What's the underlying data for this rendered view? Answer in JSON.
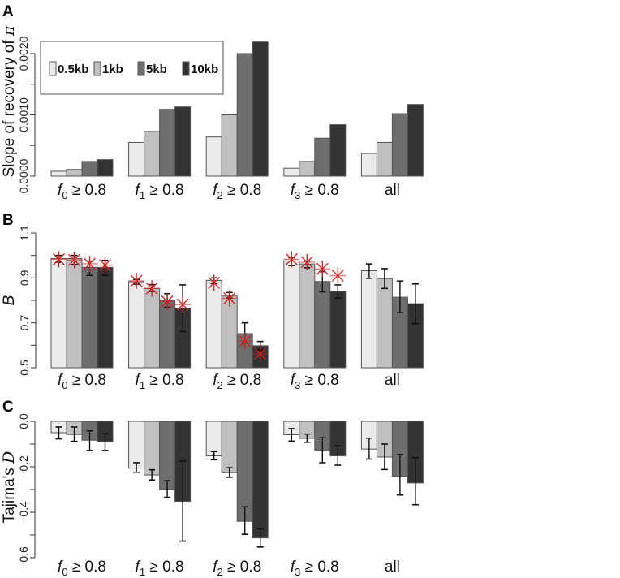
{
  "chart_data": [
    {
      "panel": "A",
      "type": "bar",
      "ylabel": "Slope of recovery of",
      "ylabel_symbol": "π",
      "ylim": [
        0,
        0.0022
      ],
      "yticks": [
        "0.0000",
        "0.0010",
        "0.0020"
      ],
      "ytick_values": [
        0,
        0.001,
        0.002
      ],
      "minor_ticks": [
        0.0005,
        0.0015
      ],
      "legend": {
        "placement": "top-left",
        "entries": [
          "0.5kb",
          "1kb",
          "5kb",
          "10kb"
        ]
      },
      "categories": [
        {
          "var": "f",
          "sub": "0",
          "text": " ≥ 0.8"
        },
        {
          "var": "f",
          "sub": "1",
          "text": " ≥ 0.8"
        },
        {
          "var": "f",
          "sub": "2",
          "text": " ≥ 0.8"
        },
        {
          "var": "f",
          "sub": "3",
          "text": " ≥ 0.8"
        },
        {
          "var": "",
          "sub": "",
          "text": "all"
        }
      ],
      "series": [
        {
          "name": "0.5kb",
          "values": [
            8e-05,
            0.00055,
            0.00064,
            0.00013,
            0.00037
          ]
        },
        {
          "name": "1kb",
          "values": [
            0.00011,
            0.00073,
            0.001,
            0.00024,
            0.00055
          ]
        },
        {
          "name": "5kb",
          "values": [
            0.00024,
            0.00109,
            0.002,
            0.00062,
            0.00102
          ]
        },
        {
          "name": "10kb",
          "values": [
            0.00027,
            0.00113,
            0.00219,
            0.00084,
            0.00117
          ]
        }
      ]
    },
    {
      "panel": "B",
      "type": "bar",
      "ylabel": "B",
      "ylim": [
        0.5,
        1.1
      ],
      "yticks": [
        "0.5",
        "0.7",
        "0.9",
        "1.1"
      ],
      "ytick_values": [
        0.5,
        0.7,
        0.9,
        1.1
      ],
      "minor_ticks": [
        0.6,
        0.8,
        1.0
      ],
      "categories": [
        {
          "var": "f",
          "sub": "0",
          "text": " ≥ 0.8"
        },
        {
          "var": "f",
          "sub": "1",
          "text": " ≥ 0.8"
        },
        {
          "var": "f",
          "sub": "2",
          "text": " ≥ 0.8"
        },
        {
          "var": "f",
          "sub": "3",
          "text": " ≥ 0.8"
        },
        {
          "var": "",
          "sub": "",
          "text": "all"
        }
      ],
      "series": [
        {
          "name": "0.5kb",
          "values": [
            0.986,
            0.883,
            0.889,
            0.976,
            0.932
          ],
          "err": [
            [
              0.97,
              1.0
            ],
            [
              0.872,
              0.893
            ],
            [
              0.875,
              0.9
            ],
            [
              0.955,
              0.99
            ],
            [
              0.898,
              0.962
            ]
          ],
          "stars": [
            0.983,
            0.887,
            0.878,
            0.983,
            null
          ]
        },
        {
          "name": "1kb",
          "values": [
            0.986,
            0.853,
            0.819,
            0.962,
            0.897
          ],
          "err": [
            [
              0.96,
              1.0
            ],
            [
              0.84,
              0.87
            ],
            [
              0.81,
              0.835
            ],
            [
              0.945,
              0.975
            ],
            [
              0.853,
              0.941
            ]
          ],
          "stars": [
            0.98,
            0.853,
            0.809,
            0.97,
            null
          ]
        },
        {
          "name": "5kb",
          "values": [
            0.947,
            0.8,
            0.652,
            0.884,
            0.814
          ],
          "err": [
            [
              0.911,
              0.975
            ],
            [
              0.769,
              0.83
            ],
            [
              0.61,
              0.7
            ],
            [
              0.838,
              0.928
            ],
            [
              0.745,
              0.886
            ]
          ],
          "stars": [
            0.963,
            0.795,
            0.618,
            0.94,
            null
          ]
        },
        {
          "name": "10kb",
          "values": [
            0.947,
            0.766,
            0.598,
            0.84,
            0.785
          ],
          "err": [
            [
              0.911,
              0.978
            ],
            [
              0.661,
              0.869
            ],
            [
              0.58,
              0.617
            ],
            [
              0.81,
              0.869
            ],
            [
              0.696,
              0.873
            ]
          ],
          "stars": [
            0.957,
            0.781,
            0.562,
            0.91,
            null
          ]
        }
      ]
    },
    {
      "panel": "C",
      "type": "bar",
      "ylabel": "Tajima's",
      "ylabel_symbol": "D",
      "ylim": [
        -0.6,
        0.0
      ],
      "yticks": [
        "0.0",
        "−0.2",
        "−0.4",
        "−0.6"
      ],
      "ytick_values": [
        0,
        -0.2,
        -0.4,
        -0.6
      ],
      "minor_ticks": [
        -0.1,
        -0.3,
        -0.5
      ],
      "categories": [
        {
          "var": "f",
          "sub": "0",
          "text": " ≥ 0.8"
        },
        {
          "var": "f",
          "sub": "1",
          "text": " ≥ 0.8"
        },
        {
          "var": "f",
          "sub": "2",
          "text": " ≥ 0.8"
        },
        {
          "var": "f",
          "sub": "3",
          "text": " ≥ 0.8"
        },
        {
          "var": "",
          "sub": "",
          "text": "all"
        }
      ],
      "series": [
        {
          "name": "0.5kb",
          "values": [
            -0.05,
            -0.206,
            -0.152,
            -0.059,
            -0.122
          ],
          "err": [
            [
              -0.077,
              -0.025
            ],
            [
              -0.224,
              -0.182
            ],
            [
              -0.169,
              -0.133
            ],
            [
              -0.087,
              -0.032
            ],
            [
              -0.166,
              -0.074
            ]
          ]
        },
        {
          "name": "1kb",
          "values": [
            -0.058,
            -0.236,
            -0.226,
            -0.075,
            -0.157
          ],
          "err": [
            [
              -0.088,
              -0.025
            ],
            [
              -0.258,
              -0.213
            ],
            [
              -0.246,
              -0.204
            ],
            [
              -0.092,
              -0.056
            ],
            [
              -0.212,
              -0.1
            ]
          ]
        },
        {
          "name": "5kb",
          "values": [
            -0.083,
            -0.299,
            -0.44,
            -0.128,
            -0.241
          ],
          "err": [
            [
              -0.128,
              -0.042
            ],
            [
              -0.334,
              -0.261
            ],
            [
              -0.497,
              -0.376
            ],
            [
              -0.182,
              -0.072
            ],
            [
              -0.324,
              -0.146
            ]
          ]
        },
        {
          "name": "10kb",
          "values": [
            -0.089,
            -0.352,
            -0.513,
            -0.152,
            -0.271
          ],
          "err": [
            [
              -0.128,
              -0.054
            ],
            [
              -0.527,
              -0.175
            ],
            [
              -0.553,
              -0.473
            ],
            [
              -0.193,
              -0.108
            ],
            [
              -0.367,
              -0.161
            ]
          ]
        }
      ]
    }
  ],
  "colors": [
    "#ebebeb",
    "#c0c0c0",
    "#6e6e6e",
    "#333333"
  ],
  "star_color": "#d42020"
}
